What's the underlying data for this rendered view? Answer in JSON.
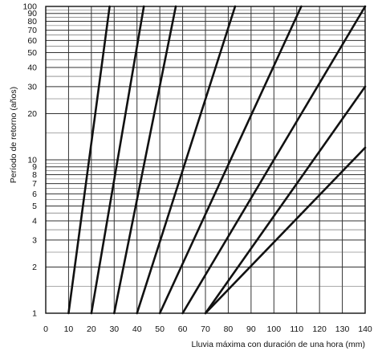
{
  "chart_data": {
    "type": "line",
    "title": "",
    "xlabel": "Lluvia máxima con duración de una hora (mm)",
    "ylabel": "Período de retorno (años)",
    "xlim": [
      0,
      140
    ],
    "ylim": [
      1,
      100
    ],
    "yscale": "log",
    "grid": true,
    "x_ticks": [
      0,
      10,
      20,
      30,
      40,
      50,
      60,
      70,
      80,
      90,
      100,
      110,
      120,
      130,
      140
    ],
    "y_ticks": [
      1,
      2,
      3,
      4,
      5,
      6,
      7,
      8,
      9,
      10,
      20,
      30,
      40,
      50,
      60,
      70,
      80,
      90,
      100
    ],
    "y_tick_labels": [
      "1",
      "2",
      "3",
      "4",
      "5",
      "6",
      "7",
      "8",
      "9",
      "10",
      "20",
      "30",
      "40",
      "50",
      "60",
      "70",
      "80",
      "90",
      "100"
    ],
    "line_color": "#111111",
    "series": [
      {
        "x": [
          10,
          28
        ],
        "y": [
          1,
          100
        ]
      },
      {
        "x": [
          20,
          43
        ],
        "y": [
          1,
          100
        ]
      },
      {
        "x": [
          30,
          57
        ],
        "y": [
          1,
          100
        ]
      },
      {
        "x": [
          40,
          83
        ],
        "y": [
          1,
          100
        ]
      },
      {
        "x": [
          50,
          112
        ],
        "y": [
          1,
          100
        ]
      },
      {
        "x": [
          60,
          140
        ],
        "y": [
          1,
          100
        ]
      },
      {
        "x": [
          70,
          140
        ],
        "y": [
          1,
          30
        ]
      },
      {
        "x": [
          70,
          140
        ],
        "y": [
          1,
          12
        ]
      }
    ]
  }
}
